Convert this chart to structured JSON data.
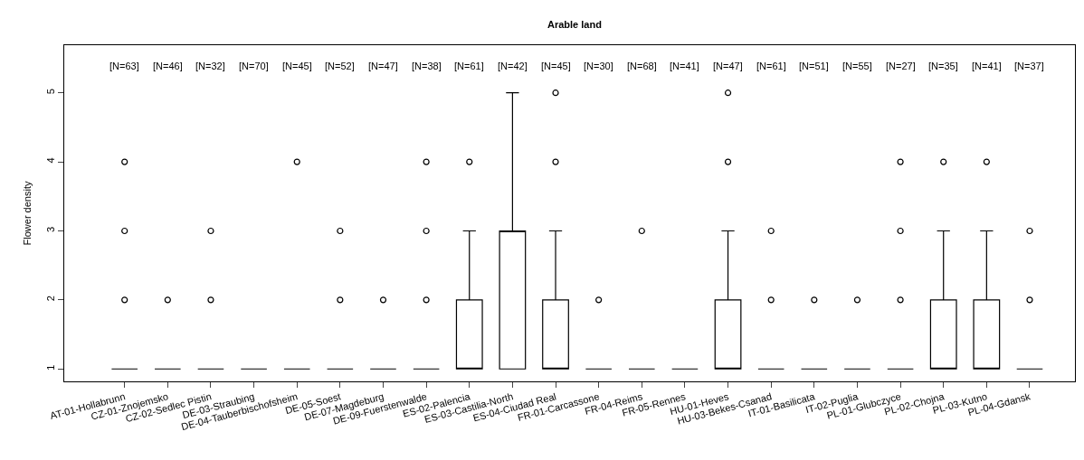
{
  "chart_data": {
    "type": "box",
    "title": "Arable land",
    "ylabel": "Flower density",
    "categories": [
      "AT-01-Hollabrunn",
      "CZ-01-Znojemsko",
      "CZ-02-Sedlec Pistin",
      "DE-03-Straubing",
      "DE-04-Tauberbischofsheim",
      "DE-05-Soest",
      "DE-07-Magdeburg",
      "DE-09-Fuerstenwalde",
      "ES-02-Palencia",
      "ES-03-Castilia-North",
      "ES-04-Ciudad Real",
      "FR-01-Carcassone",
      "FR-04-Reims",
      "FR-05-Rennes",
      "HU-01-Heves",
      "HU-03-Bekes-Csanad",
      "IT-01-Basilicata",
      "IT-02-Puglia",
      "PL-01-Glubczyce",
      "PL-02-Chojna",
      "PL-03-Kutno",
      "PL-04-Gdansk"
    ],
    "boxes": [
      {
        "low": 1,
        "q1": 1,
        "median": 1,
        "q3": 1,
        "high": 1,
        "outliers": [
          2,
          3,
          4
        ]
      },
      {
        "low": 1,
        "q1": 1,
        "median": 1,
        "q3": 1,
        "high": 1,
        "outliers": [
          2
        ]
      },
      {
        "low": 1,
        "q1": 1,
        "median": 1,
        "q3": 1,
        "high": 1,
        "outliers": [
          2,
          3
        ]
      },
      {
        "low": 1,
        "q1": 1,
        "median": 1,
        "q3": 1,
        "high": 1
      },
      {
        "low": 1,
        "q1": 1,
        "median": 1,
        "q3": 1,
        "high": 1,
        "outliers": [
          4
        ]
      },
      {
        "low": 1,
        "q1": 1,
        "median": 1,
        "q3": 1,
        "high": 1,
        "outliers": [
          2,
          3
        ]
      },
      {
        "low": 1,
        "q1": 1,
        "median": 1,
        "q3": 1,
        "high": 1,
        "outliers": [
          2
        ]
      },
      {
        "low": 1,
        "q1": 1,
        "median": 1,
        "q3": 1,
        "high": 1,
        "outliers": [
          2,
          3,
          4
        ]
      },
      {
        "low": 1,
        "q1": 1,
        "median": 1,
        "q3": 2,
        "high": 3,
        "outliers": [
          4
        ]
      },
      {
        "low": 1,
        "q1": 1,
        "median": 3,
        "q3": 3,
        "high": 5
      },
      {
        "low": 1,
        "q1": 1,
        "median": 1,
        "q3": 2,
        "high": 3,
        "outliers": [
          4,
          5
        ]
      },
      {
        "low": 1,
        "q1": 1,
        "median": 1,
        "q3": 1,
        "high": 1,
        "outliers": [
          2
        ]
      },
      {
        "low": 1,
        "q1": 1,
        "median": 1,
        "q3": 1,
        "high": 1,
        "outliers": [
          3
        ]
      },
      {
        "low": 1,
        "q1": 1,
        "median": 1,
        "q3": 1,
        "high": 1
      },
      {
        "low": 1,
        "q1": 1,
        "median": 1,
        "q3": 2,
        "high": 3,
        "outliers": [
          4,
          5
        ]
      },
      {
        "low": 1,
        "q1": 1,
        "median": 1,
        "q3": 1,
        "high": 1,
        "outliers": [
          2,
          3
        ]
      },
      {
        "low": 1,
        "q1": 1,
        "median": 1,
        "q3": 1,
        "high": 1,
        "outliers": [
          2
        ]
      },
      {
        "low": 1,
        "q1": 1,
        "median": 1,
        "q3": 1,
        "high": 1,
        "outliers": [
          2
        ]
      },
      {
        "low": 1,
        "q1": 1,
        "median": 1,
        "q3": 1,
        "high": 1,
        "outliers": [
          2,
          3,
          4
        ]
      },
      {
        "low": 1,
        "q1": 1,
        "median": 1,
        "q3": 2,
        "high": 3,
        "outliers": [
          4
        ]
      },
      {
        "low": 1,
        "q1": 1,
        "median": 1,
        "q3": 2,
        "high": 3,
        "outliers": [
          4
        ]
      },
      {
        "low": 1,
        "q1": 1,
        "median": 1,
        "q3": 1,
        "high": 1,
        "outliers": [
          2,
          3
        ]
      }
    ],
    "color": "#000000",
    "ylim": [
      0.82,
      5.69
    ],
    "yticks": [
      1,
      2,
      3,
      4,
      5
    ],
    "grid": false,
    "annotations": [
      "[N=63]",
      "[N=46]",
      "[N=32]",
      "[N=70]",
      "[N=45]",
      "[N=52]",
      "[N=47]",
      "[N=38]",
      "[N=61]",
      "[N=42]",
      "[N=45]",
      "[N=30]",
      "[N=68]",
      "[N=41]",
      "[N=47]",
      "[N=61]",
      "[N=51]",
      "[N=55]",
      "[N=27]",
      "[N=35]",
      "[N=41]",
      "[N=37]"
    ]
  }
}
